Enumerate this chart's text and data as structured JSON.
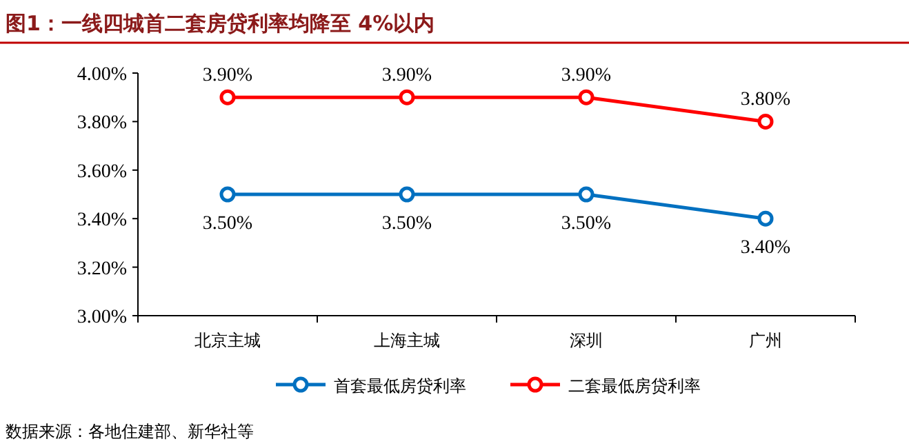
{
  "chart_data": {
    "type": "line",
    "title": "图1：一线四城首二套房贷利率均降至 4%以内",
    "categories": [
      "北京主城",
      "上海主城",
      "深圳",
      "广州"
    ],
    "series": [
      {
        "name": "首套最低房贷利率",
        "color": "#0070c0",
        "values": [
          3.5,
          3.5,
          3.5,
          3.4
        ],
        "value_labels": [
          "3.50%",
          "3.50%",
          "3.50%",
          "3.40%"
        ]
      },
      {
        "name": "二套最低房贷利率",
        "color": "#ff0000",
        "values": [
          3.9,
          3.9,
          3.9,
          3.8
        ],
        "value_labels": [
          "3.90%",
          "3.90%",
          "3.90%",
          "3.80%"
        ]
      }
    ],
    "ylim": [
      3.0,
      4.0
    ],
    "yticks": [
      {
        "value": 3.0,
        "label": "3.00%"
      },
      {
        "value": 3.2,
        "label": "3.20%"
      },
      {
        "value": 3.4,
        "label": "3.40%"
      },
      {
        "value": 3.6,
        "label": "3.60%"
      },
      {
        "value": 3.8,
        "label": "3.80%"
      },
      {
        "value": 4.0,
        "label": "4.00%"
      }
    ],
    "marker": "circle",
    "line_style": "solid",
    "legend": "bottom",
    "grid": false,
    "annotations": [
      "数据来源：各地住建部、新华社等"
    ]
  }
}
